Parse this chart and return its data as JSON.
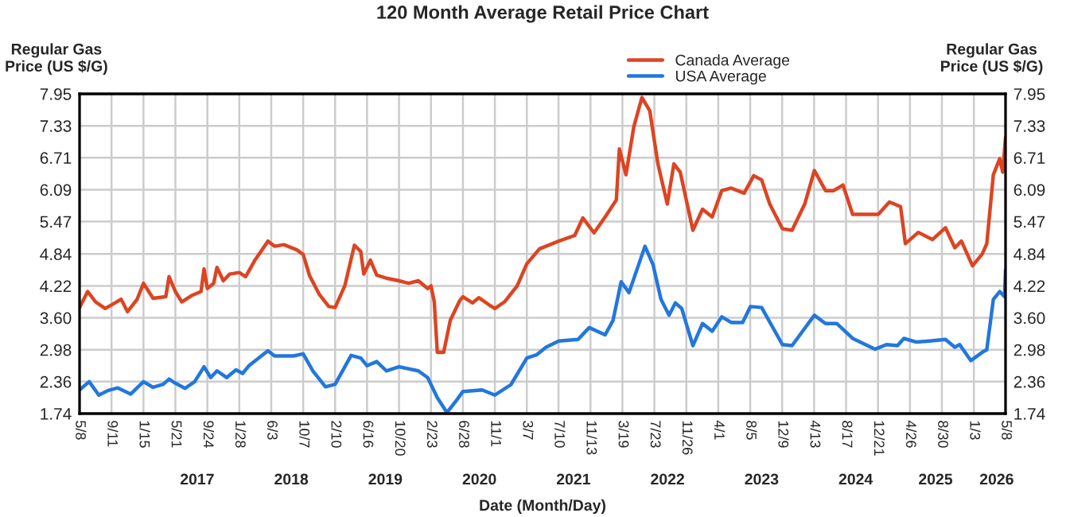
{
  "chart_data": {
    "type": "line",
    "title": "120 Month Average Retail Price Chart",
    "xlabel": "Date (Month/Day)",
    "ylabel": "Regular Gas\nPrice (US $/G)",
    "y2label": "Regular Gas\nPrice (US $/G)",
    "xlim": [
      "2016-05-08",
      "2026-05-08"
    ],
    "xticks": [
      {
        "value": "2016-05-08",
        "label": "5/8"
      },
      {
        "value": "2016-09-11",
        "label": "9/11"
      },
      {
        "value": "2017-01-15",
        "label": "1/15"
      },
      {
        "value": "2017-05-21",
        "label": "5/21"
      },
      {
        "value": "2017-09-24",
        "label": "9/24"
      },
      {
        "value": "2018-01-28",
        "label": "1/28"
      },
      {
        "value": "2018-06-03",
        "label": "6/3"
      },
      {
        "value": "2018-10-07",
        "label": "10/7"
      },
      {
        "value": "2019-02-10",
        "label": "2/10"
      },
      {
        "value": "2019-06-16",
        "label": "6/16"
      },
      {
        "value": "2019-10-20",
        "label": "10/20"
      },
      {
        "value": "2020-02-23",
        "label": "2/23"
      },
      {
        "value": "2020-06-28",
        "label": "6/28"
      },
      {
        "value": "2020-11-01",
        "label": "11/1"
      },
      {
        "value": "2021-03-07",
        "label": "3/7"
      },
      {
        "value": "2021-07-10",
        "label": "7/10"
      },
      {
        "value": "2021-11-13",
        "label": "11/13"
      },
      {
        "value": "2022-03-19",
        "label": "3/19"
      },
      {
        "value": "2022-07-23",
        "label": "7/23"
      },
      {
        "value": "2022-11-26",
        "label": "11/26"
      },
      {
        "value": "2023-04-01",
        "label": "4/1"
      },
      {
        "value": "2023-08-05",
        "label": "8/5"
      },
      {
        "value": "2023-12-09",
        "label": "12/9"
      },
      {
        "value": "2024-04-13",
        "label": "4/13"
      },
      {
        "value": "2024-08-17",
        "label": "8/17"
      },
      {
        "value": "2024-12-21",
        "label": "12/21"
      },
      {
        "value": "2025-04-26",
        "label": "4/26"
      },
      {
        "value": "2025-08-30",
        "label": "8/30"
      },
      {
        "value": "2026-01-03",
        "label": "1/3"
      },
      {
        "value": "2026-05-08",
        "label": "5/8"
      }
    ],
    "x2ticks": [
      {
        "value": "2017-08-15",
        "label": "2017"
      },
      {
        "value": "2018-08-21",
        "label": "2018"
      },
      {
        "value": "2019-08-27",
        "label": "2019"
      },
      {
        "value": "2020-09-01",
        "label": "2020"
      },
      {
        "value": "2021-09-07",
        "label": "2021"
      },
      {
        "value": "2022-09-13",
        "label": "2022"
      },
      {
        "value": "2023-09-19",
        "label": "2023"
      },
      {
        "value": "2024-09-24",
        "label": "2024"
      },
      {
        "value": "2025-08-05",
        "label": "2025"
      },
      {
        "value": "2026-04-03",
        "label": "2026"
      }
    ],
    "x2lim": [
      "2016-05-08",
      "2026-05-08"
    ],
    "ylim": [
      1.74,
      7.95
    ],
    "yticks": [
      1.74,
      2.36,
      2.98,
      {
        "value": 3.6,
        "label": "3.60"
      },
      4.22,
      4.84,
      5.47,
      6.09,
      6.71,
      7.33,
      7.95
    ],
    "y2lim": [
      1.74,
      7.95
    ],
    "y2ticks": [
      1.74,
      2.36,
      2.98,
      {
        "value": 3.6,
        "label": "3.60"
      },
      4.22,
      4.84,
      5.47,
      6.09,
      6.71,
      7.33,
      7.95
    ],
    "grid": true,
    "legend": "top",
    "line_style": "solid",
    "series": [
      {
        "name": "Canada Average",
        "color": "#dd4422",
        "x": [
          "2016-05-08",
          "2016-06-09",
          "2016-07-10",
          "2016-08-17",
          "2016-09-11",
          "2016-10-19",
          "2016-11-13",
          "2016-12-21",
          "2017-01-15",
          "2017-02-22",
          "2017-04-13",
          "2017-04-26",
          "2017-05-21",
          "2017-06-15",
          "2017-07-23",
          "2017-08-30",
          "2017-09-11",
          "2017-09-24",
          "2017-10-19",
          "2017-11-01",
          "2017-11-26",
          "2017-12-21",
          "2018-01-28",
          "2018-02-22",
          "2018-04-01",
          "2018-05-21",
          "2018-06-16",
          "2018-07-23",
          "2018-09-12",
          "2018-10-07",
          "2018-11-01",
          "2018-12-09",
          "2019-01-16",
          "2019-02-10",
          "2019-03-20",
          "2019-04-27",
          "2019-05-22",
          "2019-06-03",
          "2019-06-29",
          "2019-07-24",
          "2019-08-31",
          "2019-10-20",
          "2019-11-27",
          "2020-01-04",
          "2020-02-10",
          "2020-02-23",
          "2020-03-07",
          "2020-03-19",
          "2020-04-13",
          "2020-05-09",
          "2020-06-15",
          "2020-06-28",
          "2020-08-05",
          "2020-08-30",
          "2020-10-07",
          "2020-11-01",
          "2020-12-09",
          "2021-01-28",
          "2021-03-07",
          "2021-04-26",
          "2021-07-11",
          "2021-09-12",
          "2021-10-14",
          "2021-11-27",
          "2022-01-10",
          "2022-02-23",
          "2022-03-07",
          "2022-04-02",
          "2022-05-03",
          "2022-06-04",
          "2022-07-05",
          "2022-08-06",
          "2022-09-12",
          "2022-10-08",
          "2022-11-02",
          "2022-12-22",
          "2023-01-29",
          "2023-03-08",
          "2023-04-15",
          "2023-05-22",
          "2023-07-12",
          "2023-08-19",
          "2023-09-19",
          "2023-10-21",
          "2023-12-10",
          "2024-01-17",
          "2024-03-07",
          "2024-04-14",
          "2024-05-28",
          "2024-06-29",
          "2024-08-05",
          "2024-09-12",
          "2024-11-02",
          "2024-12-22",
          "2025-02-04",
          "2025-03-20",
          "2025-04-08",
          "2025-05-29",
          "2025-07-24",
          "2025-09-13",
          "2025-10-20",
          "2025-11-15",
          "2025-12-29",
          "2026-02-05",
          "2026-02-23",
          "2026-03-21",
          "2026-04-15",
          "2026-04-27",
          "2026-05-08"
        ],
        "values": [
          3.8,
          4.11,
          3.91,
          3.78,
          3.85,
          3.96,
          3.72,
          3.96,
          4.27,
          3.98,
          4.01,
          4.4,
          4.11,
          3.91,
          4.03,
          4.11,
          4.55,
          4.17,
          4.27,
          4.58,
          4.32,
          4.45,
          4.48,
          4.4,
          4.73,
          5.09,
          4.99,
          5.02,
          4.92,
          4.83,
          4.42,
          4.06,
          3.82,
          3.8,
          4.22,
          5.01,
          4.89,
          4.45,
          4.72,
          4.43,
          4.37,
          4.32,
          4.27,
          4.32,
          4.17,
          4.22,
          3.91,
          2.93,
          2.93,
          3.55,
          3.93,
          4.01,
          3.89,
          3.99,
          3.86,
          3.78,
          3.91,
          4.22,
          4.65,
          4.94,
          5.09,
          5.2,
          5.54,
          5.25,
          5.56,
          5.89,
          6.88,
          6.38,
          7.31,
          7.88,
          7.62,
          6.59,
          5.81,
          6.59,
          6.43,
          5.3,
          5.71,
          5.56,
          6.07,
          6.12,
          6.02,
          6.36,
          6.28,
          5.81,
          5.33,
          5.3,
          5.81,
          6.46,
          6.07,
          6.07,
          6.18,
          5.61,
          5.61,
          5.61,
          5.85,
          5.76,
          5.04,
          5.26,
          5.12,
          5.35,
          4.96,
          5.09,
          4.61,
          4.84,
          5.04,
          6.38,
          6.69,
          6.43,
          7.1
        ]
      },
      {
        "name": "USA Average",
        "color": "#2277dd",
        "x": [
          "2016-05-08",
          "2016-06-15",
          "2016-07-23",
          "2016-08-29",
          "2016-10-06",
          "2016-11-26",
          "2017-01-15",
          "2017-02-22",
          "2017-04-03",
          "2017-04-26",
          "2017-05-21",
          "2017-06-28",
          "2017-08-05",
          "2017-09-11",
          "2017-10-07",
          "2017-11-01",
          "2017-12-09",
          "2018-01-15",
          "2018-02-10",
          "2018-03-07",
          "2018-05-21",
          "2018-06-16",
          "2018-08-30",
          "2018-10-07",
          "2018-11-14",
          "2019-01-03",
          "2019-02-10",
          "2019-04-14",
          "2019-05-22",
          "2019-06-16",
          "2019-07-24",
          "2019-08-31",
          "2019-10-20",
          "2020-01-04",
          "2020-02-10",
          "2020-03-19",
          "2020-04-26",
          "2020-06-03",
          "2020-06-28",
          "2020-09-12",
          "2020-11-01",
          "2021-01-03",
          "2021-03-07",
          "2021-04-14",
          "2021-05-22",
          "2021-07-11",
          "2021-09-25",
          "2021-11-08",
          "2022-01-10",
          "2022-02-10",
          "2022-03-14",
          "2022-04-14",
          "2022-06-16",
          "2022-07-18",
          "2022-08-18",
          "2022-09-19",
          "2022-10-14",
          "2022-11-08",
          "2022-12-22",
          "2023-01-29",
          "2023-03-08",
          "2023-04-15",
          "2023-05-22",
          "2023-07-06",
          "2023-08-06",
          "2023-09-19",
          "2023-12-10",
          "2024-01-17",
          "2024-04-14",
          "2024-05-28",
          "2024-07-11",
          "2024-09-12",
          "2024-12-09",
          "2025-01-23",
          "2025-03-08",
          "2025-04-02",
          "2025-05-22",
          "2025-07-12",
          "2025-09-13",
          "2025-10-20",
          "2025-11-08",
          "2025-12-22",
          "2026-02-11",
          "2026-02-23",
          "2026-03-21",
          "2026-04-15",
          "2026-05-04",
          "2026-05-08"
        ],
        "values": [
          2.2,
          2.36,
          2.1,
          2.19,
          2.24,
          2.12,
          2.36,
          2.25,
          2.31,
          2.41,
          2.33,
          2.23,
          2.36,
          2.65,
          2.44,
          2.57,
          2.44,
          2.59,
          2.52,
          2.67,
          2.96,
          2.86,
          2.86,
          2.9,
          2.57,
          2.26,
          2.31,
          2.87,
          2.82,
          2.67,
          2.75,
          2.57,
          2.65,
          2.57,
          2.44,
          2.05,
          1.76,
          2.0,
          2.17,
          2.2,
          2.1,
          2.3,
          2.82,
          2.88,
          3.03,
          3.15,
          3.18,
          3.41,
          3.27,
          3.55,
          4.3,
          4.09,
          4.99,
          4.63,
          3.96,
          3.65,
          3.89,
          3.78,
          3.06,
          3.49,
          3.34,
          3.62,
          3.51,
          3.51,
          3.82,
          3.8,
          3.08,
          3.06,
          3.65,
          3.49,
          3.49,
          3.2,
          2.99,
          3.08,
          3.06,
          3.2,
          3.13,
          3.15,
          3.18,
          3.03,
          3.08,
          2.77,
          2.95,
          2.98,
          3.96,
          4.11,
          4.01,
          4.53
        ]
      }
    ]
  }
}
